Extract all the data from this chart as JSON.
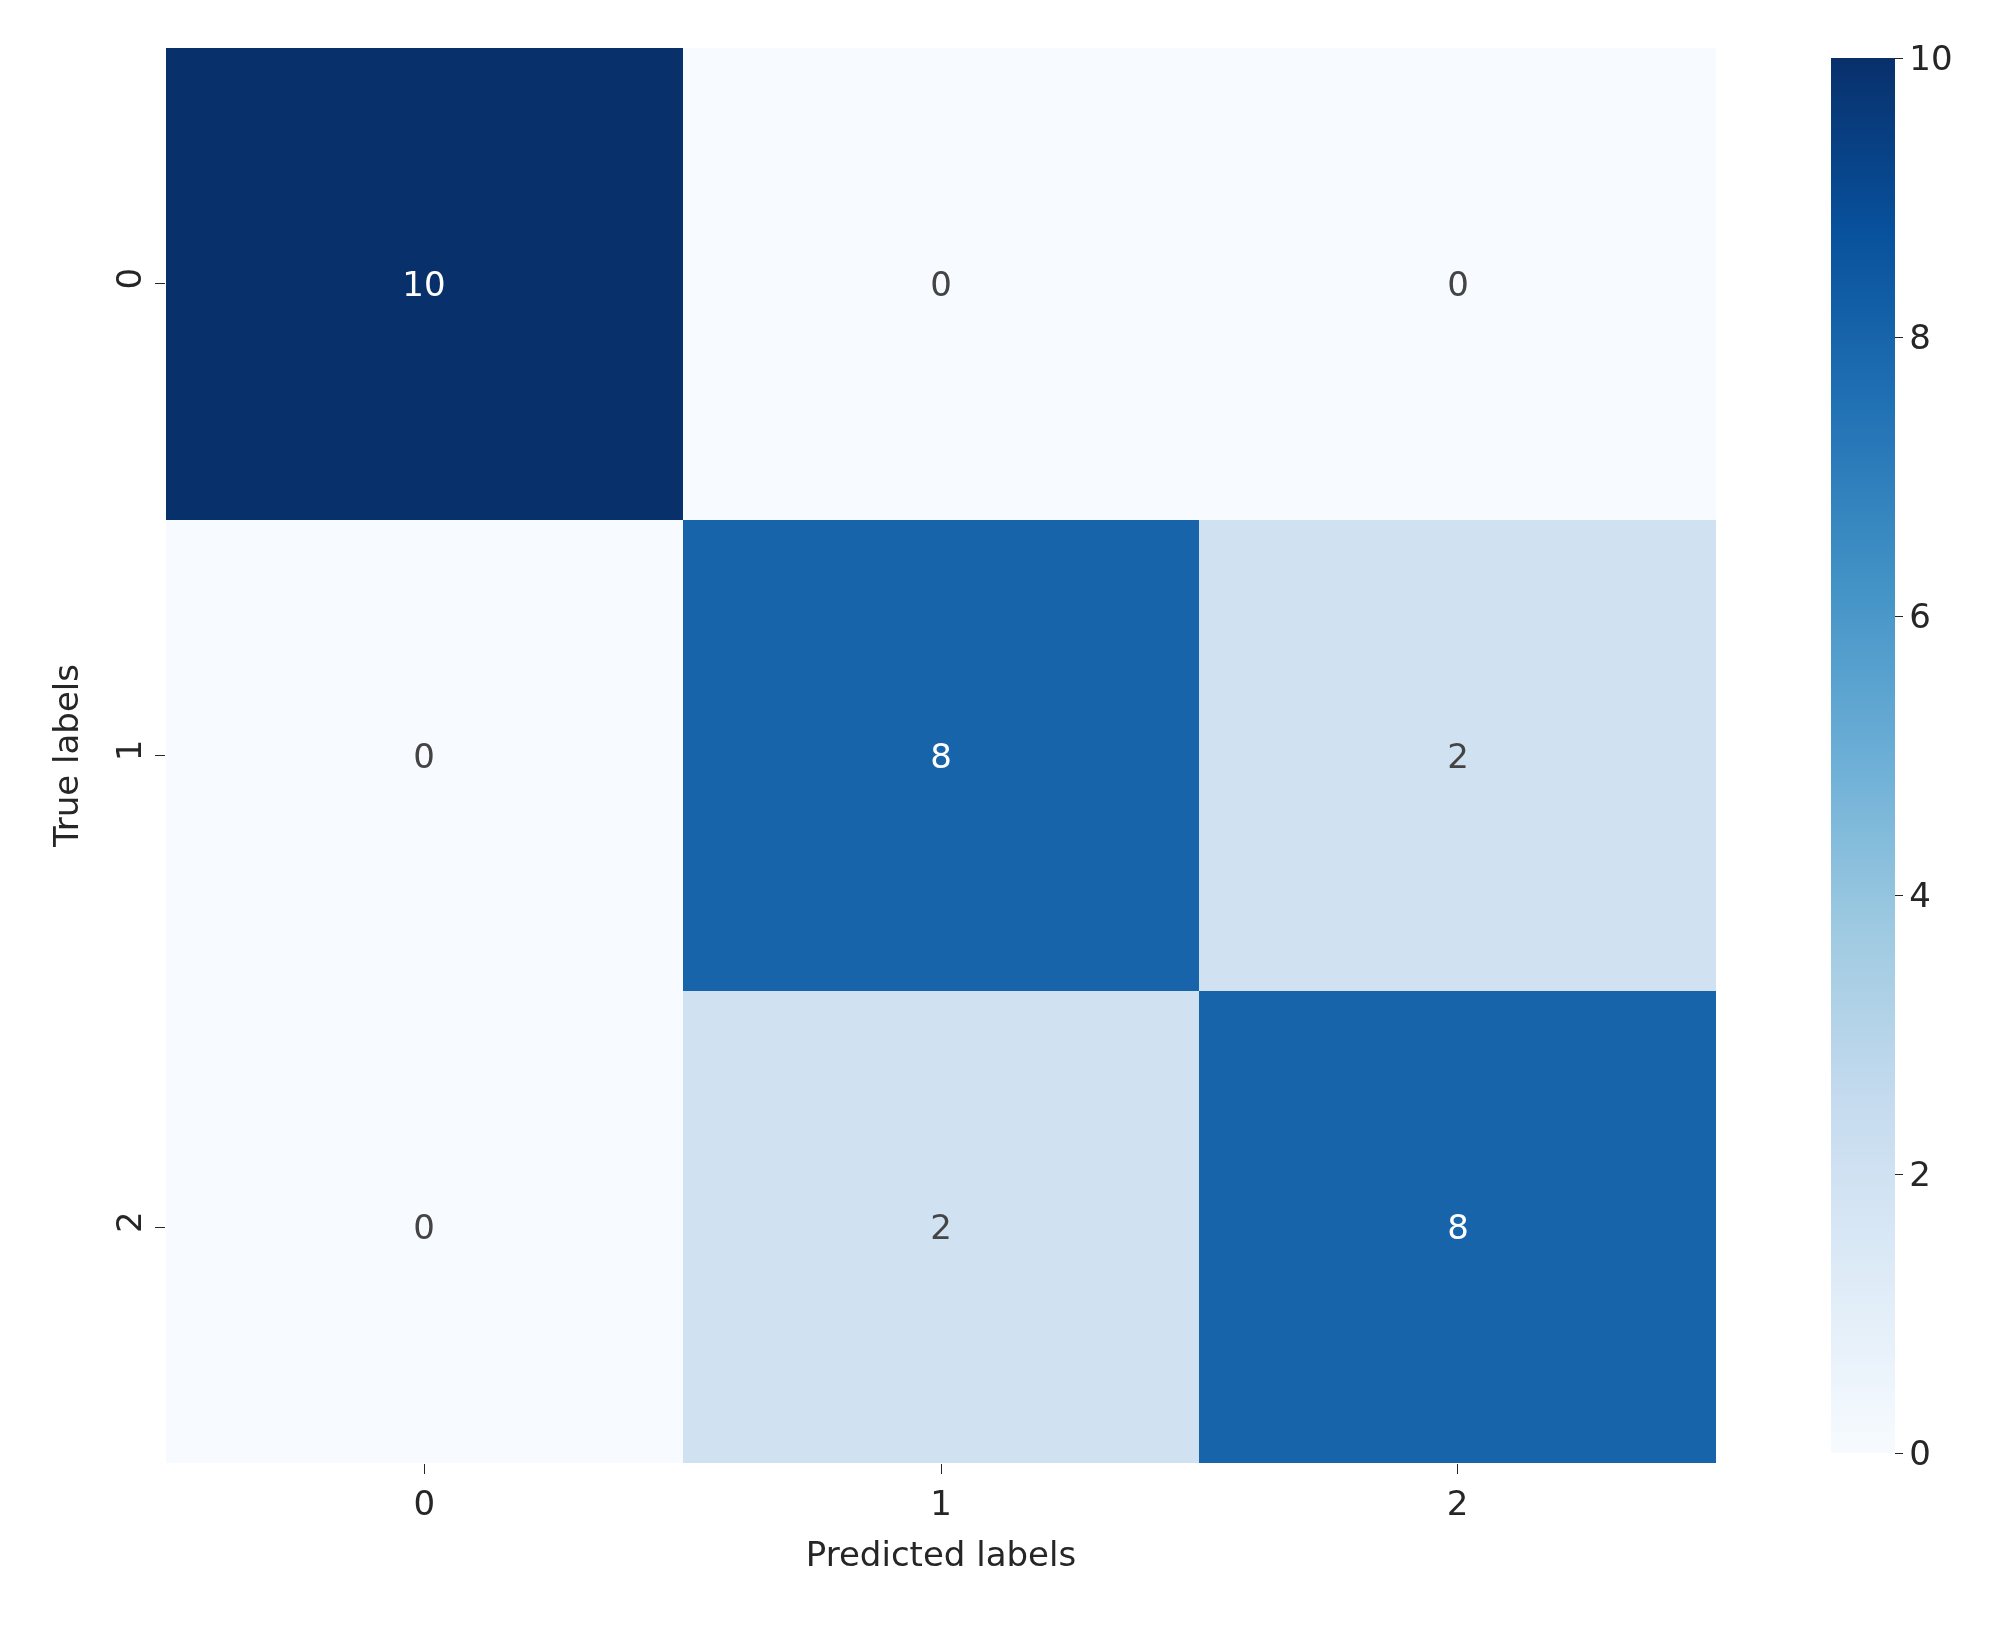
{
  "chart_data": {
    "type": "heatmap",
    "xlabel": "Predicted labels",
    "ylabel": "True labels",
    "categories": [
      "0",
      "1",
      "2"
    ],
    "y_categories": [
      "0",
      "1",
      "2"
    ],
    "cells": [
      [
        10,
        0,
        0
      ],
      [
        0,
        8,
        2
      ],
      [
        0,
        2,
        8
      ]
    ],
    "clim": [
      0,
      10
    ],
    "cticks": [
      0,
      2,
      4,
      6,
      8,
      10
    ],
    "data_labels": true
  }
}
